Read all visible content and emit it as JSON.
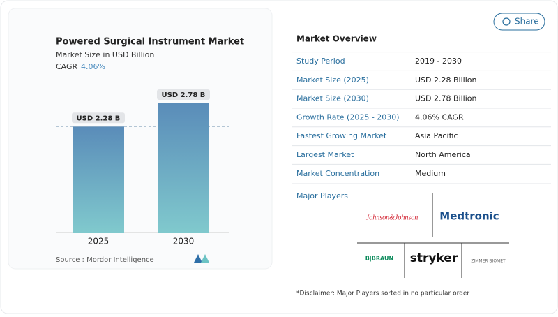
{
  "chart_data": {
    "type": "bar",
    "title": "Powered Surgical Instrument Market",
    "subtitle": "Market Size in USD Billion",
    "cagr_label": "CAGR",
    "cagr_value": "4.06%",
    "categories": [
      "2025",
      "2030"
    ],
    "values": [
      2.28,
      2.78
    ],
    "value_labels": [
      "USD 2.28 B",
      "USD 2.78 B"
    ],
    "source": "Source :  Mordor Intelligence"
  },
  "share": "Share",
  "overview": {
    "title": "Market Overview",
    "rows": [
      [
        "Study Period",
        "2019 - 2030"
      ],
      [
        "Market Size (2025)",
        "USD 2.28 Billion"
      ],
      [
        "Market Size (2030)",
        "USD 2.78 Billion"
      ],
      [
        "Growth Rate (2025 - 2030)",
        "4.06% CAGR"
      ],
      [
        "Fastest Growing Market",
        "Asia Pacific"
      ],
      [
        "Largest Market",
        "North America"
      ],
      [
        "Market Concentration",
        "Medium"
      ]
    ]
  },
  "players": {
    "title": "Major Players",
    "logos": [
      "Johnson&Johnson",
      "Medtronic",
      "B|BRAUN",
      "stryker",
      "ZIMMER BIOMET"
    ],
    "disclaimer": "*Disclaimer: Major Players sorted in no particular order"
  }
}
